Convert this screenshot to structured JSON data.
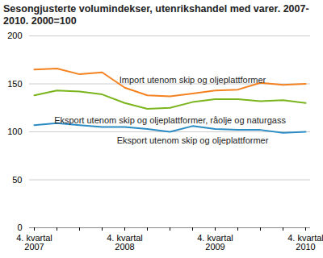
{
  "chart_data": {
    "type": "line",
    "title": "Sesongjusterte volumindekser, utenrikshandel med varer. 2007-2010. 2000=100",
    "categories": [
      "4. kvartal\n2007",
      null,
      null,
      null,
      "4. kvartal\n2008",
      null,
      null,
      null,
      "4. kvartal\n2009",
      null,
      null,
      null,
      "4. kvartal\n2010"
    ],
    "series": [
      {
        "name": "Import utenom skip og oljeplattformer",
        "color": "#f58220",
        "values": [
          165,
          166,
          160,
          162,
          146,
          138,
          137,
          140,
          143,
          144,
          151,
          149,
          150
        ]
      },
      {
        "name": "Eksport utenom skip og oljeplattformer, råolje og naturgass",
        "color": "#7ab51d",
        "values": [
          138,
          143,
          142,
          139,
          130,
          124,
          125,
          131,
          134,
          134,
          132,
          133,
          130
        ]
      },
      {
        "name": "Eksport utenom skip og oljeplattformer",
        "color": "#2b8cc4",
        "values": [
          107,
          109,
          107,
          105,
          105,
          103,
          100,
          106,
          103,
          102,
          102,
          99,
          100
        ]
      }
    ],
    "ylim": [
      0,
      200
    ],
    "yticks": [
      0,
      50,
      100,
      150,
      200
    ],
    "grid": true
  }
}
